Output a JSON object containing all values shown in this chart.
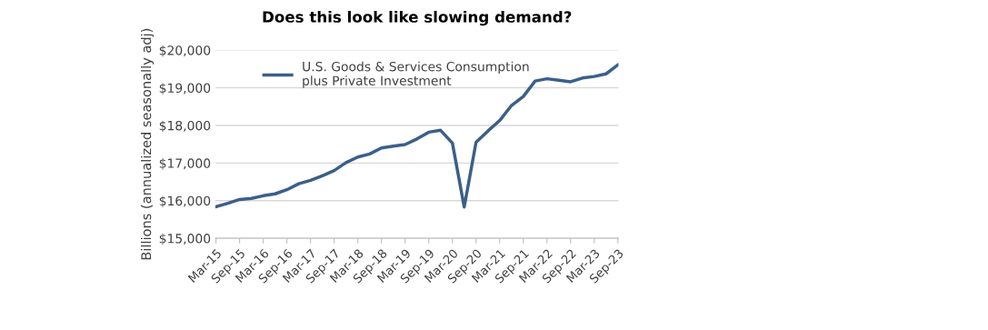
{
  "chart_data": {
    "type": "line",
    "title": "Does this look like slowing demand?",
    "ylabel": "Billions (annualized seasonally adj)",
    "categories": [
      "Mar-15",
      null,
      "Sep-15",
      null,
      "Mar-16",
      null,
      "Sep-16",
      null,
      "Mar-17",
      null,
      "Sep-17",
      null,
      "Mar-18",
      null,
      "Sep-18",
      null,
      "Mar-19",
      null,
      "Sep-19",
      null,
      "Mar-20",
      null,
      "Sep-20",
      null,
      "Mar-21",
      null,
      "Sep-21",
      null,
      "Mar-22",
      null,
      "Sep-22",
      null,
      "Mar-23",
      null,
      "Sep-23"
    ],
    "series": [
      {
        "name": "U.S. Goods & Services Consumption\nplus Private Investment",
        "color": "#3a5f8a",
        "values": [
          15840,
          15930,
          16030,
          16060,
          16130,
          16180,
          16290,
          16450,
          16540,
          16660,
          16800,
          17010,
          17160,
          17240,
          17400,
          17450,
          17490,
          17640,
          17820,
          17870,
          17530,
          15830,
          17550,
          17850,
          18130,
          18530,
          18770,
          19180,
          19240,
          19200,
          19160,
          19260,
          19300,
          19370,
          19610
        ]
      }
    ],
    "ylim": [
      15000,
      20000
    ],
    "yticks": [
      {
        "value": 15000,
        "label": "$15,000"
      },
      {
        "value": 16000,
        "label": "$16,000"
      },
      {
        "value": 17000,
        "label": "$17,000"
      },
      {
        "value": 18000,
        "label": "$18,000"
      },
      {
        "value": 19000,
        "label": "$19,000"
      },
      {
        "value": 20000,
        "label": "$20,000"
      }
    ],
    "grid": "y",
    "legend": "top",
    "marker": "none",
    "line_style": "solid"
  }
}
